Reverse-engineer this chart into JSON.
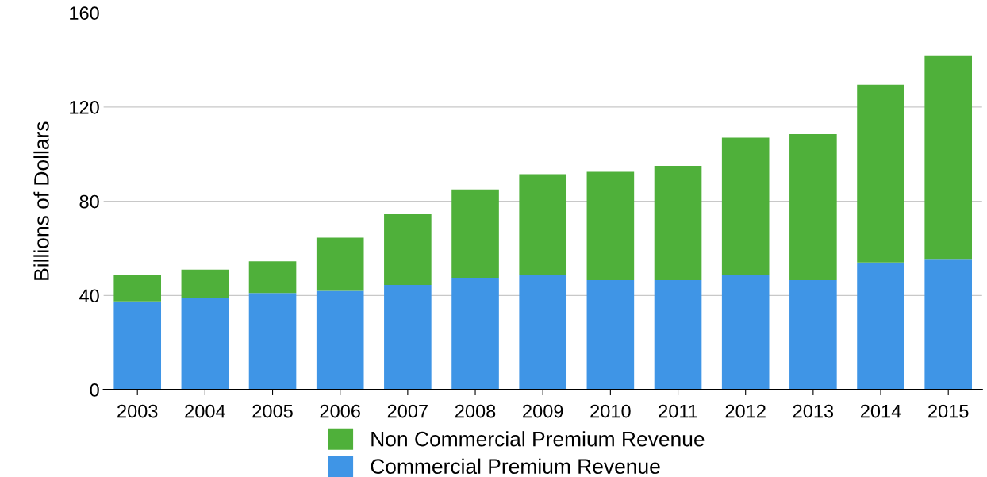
{
  "chart_data": {
    "type": "bar",
    "stacked": true,
    "ylabel": "Billions of Dollars",
    "categories": [
      "2003",
      "2004",
      "2005",
      "2006",
      "2007",
      "2008",
      "2009",
      "2010",
      "2011",
      "2012",
      "2013",
      "2014",
      "2015"
    ],
    "series": [
      {
        "name": "Commercial Premium Revenue",
        "color": "#3f95e6",
        "values": [
          37.5,
          39,
          41,
          42,
          44.5,
          47.5,
          48.5,
          46.5,
          46.5,
          48.5,
          46.5,
          54,
          55.5
        ]
      },
      {
        "name": "Non Commercial Premium Revenue",
        "color": "#4fb03a",
        "values": [
          11,
          12,
          13.5,
          22.5,
          30,
          37.5,
          43,
          46,
          48.5,
          58.5,
          62,
          75.5,
          86.5
        ]
      }
    ],
    "ylim": [
      0,
      160
    ],
    "yticks": [
      0,
      40,
      80,
      120,
      160
    ],
    "grid": "y",
    "legend": "bottom"
  }
}
